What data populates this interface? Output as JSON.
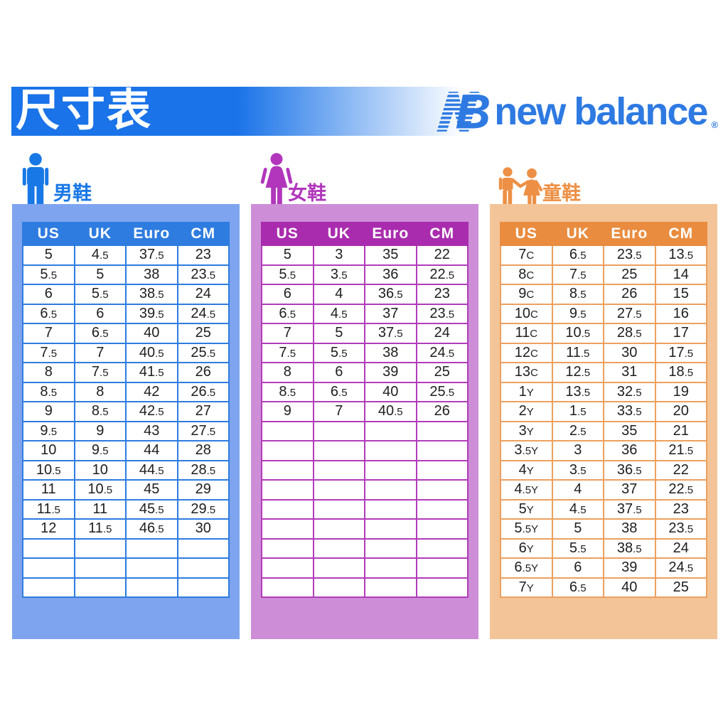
{
  "page": {
    "title": "尺寸表"
  },
  "banner": {
    "color": "#1a73e8"
  },
  "brand": {
    "name": "new balance",
    "registered": "®",
    "logo_color": "#2e7ae2"
  },
  "tables": [
    {
      "id": "men",
      "label": "男鞋",
      "icon": "man-icon",
      "colors": {
        "accent": "#1878e6",
        "panel": "#7fa4ef",
        "head": "#2e7ce0",
        "border": "#2e7ce0"
      },
      "columns": [
        "US",
        "UK",
        "Euro",
        "CM"
      ],
      "rows": [
        [
          "5",
          "4.5",
          "37.5",
          "23"
        ],
        [
          "5.5",
          "5",
          "38",
          "23.5"
        ],
        [
          "6",
          "5.5",
          "38.5",
          "24"
        ],
        [
          "6.5",
          "6",
          "39.5",
          "24.5"
        ],
        [
          "7",
          "6.5",
          "40",
          "25"
        ],
        [
          "7.5",
          "7",
          "40.5",
          "25.5"
        ],
        [
          "8",
          "7.5",
          "41.5",
          "26"
        ],
        [
          "8.5",
          "8",
          "42",
          "26.5"
        ],
        [
          "9",
          "8.5",
          "42.5",
          "27"
        ],
        [
          "9.5",
          "9",
          "43",
          "27.5"
        ],
        [
          "10",
          "9.5",
          "44",
          "28"
        ],
        [
          "10.5",
          "10",
          "44.5",
          "28.5"
        ],
        [
          "11",
          "10.5",
          "45",
          "29"
        ],
        [
          "11.5",
          "11",
          "45.5",
          "29.5"
        ],
        [
          "12",
          "11.5",
          "46.5",
          "30"
        ]
      ],
      "empty_rows": 3
    },
    {
      "id": "women",
      "label": "女鞋",
      "icon": "woman-icon",
      "colors": {
        "accent": "#b136bc",
        "panel": "#cd8dd7",
        "head": "#a92cae",
        "border": "#b13cba"
      },
      "columns": [
        "US",
        "UK",
        "Euro",
        "CM"
      ],
      "rows": [
        [
          "5",
          "3",
          "35",
          "22"
        ],
        [
          "5.5",
          "3.5",
          "36",
          "22.5"
        ],
        [
          "6",
          "4",
          "36.5",
          "23"
        ],
        [
          "6.5",
          "4.5",
          "37",
          "23.5"
        ],
        [
          "7",
          "5",
          "37.5",
          "24"
        ],
        [
          "7.5",
          "5.5",
          "38",
          "24.5"
        ],
        [
          "8",
          "6",
          "39",
          "25"
        ],
        [
          "8.5",
          "6.5",
          "40",
          "25.5"
        ],
        [
          "9",
          "7",
          "40.5",
          "26"
        ]
      ],
      "empty_rows": 9
    },
    {
      "id": "kids",
      "label": "童鞋",
      "icon": "children-icon",
      "colors": {
        "accent": "#ed9045",
        "panel": "#f3c498",
        "head": "#e98c3f",
        "border": "#eda05e"
      },
      "columns": [
        "US",
        "UK",
        "Euro",
        "CM"
      ],
      "rows": [
        [
          "7C",
          "6.5",
          "23.5",
          "13.5"
        ],
        [
          "8C",
          "7.5",
          "25",
          "14"
        ],
        [
          "9C",
          "8.5",
          "26",
          "15"
        ],
        [
          "10C",
          "9.5",
          "27.5",
          "16"
        ],
        [
          "11C",
          "10.5",
          "28.5",
          "17"
        ],
        [
          "12C",
          "11.5",
          "30",
          "17.5"
        ],
        [
          "13C",
          "12.5",
          "31",
          "18.5"
        ],
        [
          "1Y",
          "13.5",
          "32.5",
          "19"
        ],
        [
          "2Y",
          "1.5",
          "33.5",
          "20"
        ],
        [
          "3Y",
          "2.5",
          "35",
          "21"
        ],
        [
          "3.5Y",
          "3",
          "36",
          "21.5"
        ],
        [
          "4Y",
          "3.5",
          "36.5",
          "22"
        ],
        [
          "4.5Y",
          "4",
          "37",
          "22.5"
        ],
        [
          "5Y",
          "4.5",
          "37.5",
          "23"
        ],
        [
          "5.5Y",
          "5",
          "38",
          "23.5"
        ],
        [
          "6Y",
          "5.5",
          "38.5",
          "24"
        ],
        [
          "6.5Y",
          "6",
          "39",
          "24.5"
        ],
        [
          "7Y",
          "6.5",
          "40",
          "25"
        ]
      ],
      "empty_rows": 0
    }
  ]
}
